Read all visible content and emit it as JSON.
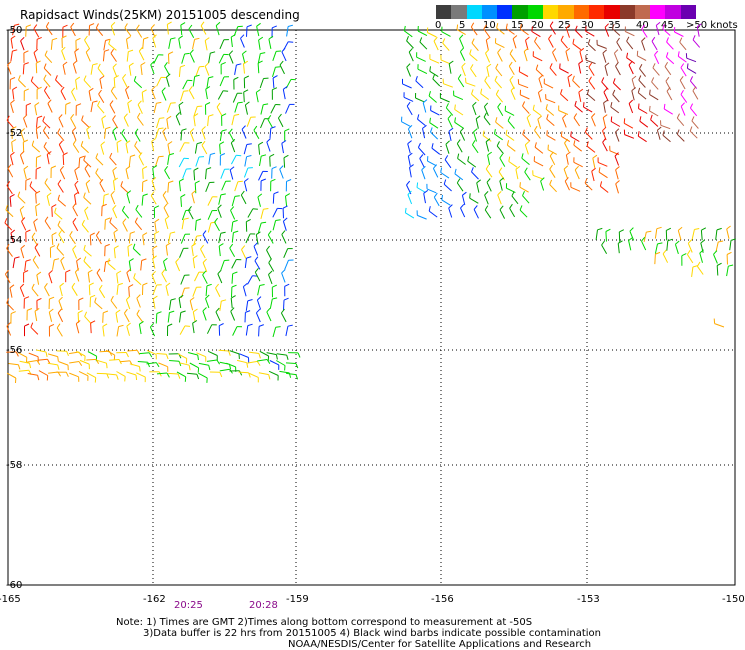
{
  "title": "Rapidsact Winds(25KM) 20151005 descending",
  "colorbar": {
    "colors": [
      "#3d3d3d",
      "#7a7a7a",
      "#00d8ff",
      "#0090ff",
      "#0030ff",
      "#00a000",
      "#00d800",
      "#ffd800",
      "#ffaa00",
      "#ff6a00",
      "#ff2a00",
      "#e80000",
      "#8b3a2a",
      "#c06a50",
      "#ff00ff",
      "#c000e0",
      "#6a00b0"
    ],
    "labels": [
      "0",
      "5",
      "10",
      "15",
      "20",
      "25",
      "30",
      "35",
      "40",
      "45",
      ">50 knots"
    ]
  },
  "axes": {
    "lat_labels": [
      "-50",
      "-52",
      "-54",
      "-56",
      "-58",
      "-60"
    ],
    "lon_labels": [
      "-165",
      "-162",
      "-159",
      "-156",
      "-153",
      "-150"
    ]
  },
  "times": [
    "20:25",
    "20:28"
  ],
  "notes": [
    "Note: 1) Times are GMT 2)Times along bottom correspond to measurement at -50S",
    "3)Data buffer is 22 hrs from 20151005 4) Black wind barbs indicate possible contamination",
    "NOAA/NESDIS/Center for Satellite Applications and Research"
  ],
  "chart_data": {
    "type": "wind-barb-map",
    "title": "Rapidsact Winds(25KM) 20151005 descending",
    "xlabel": "",
    "ylabel": ""
  }
}
